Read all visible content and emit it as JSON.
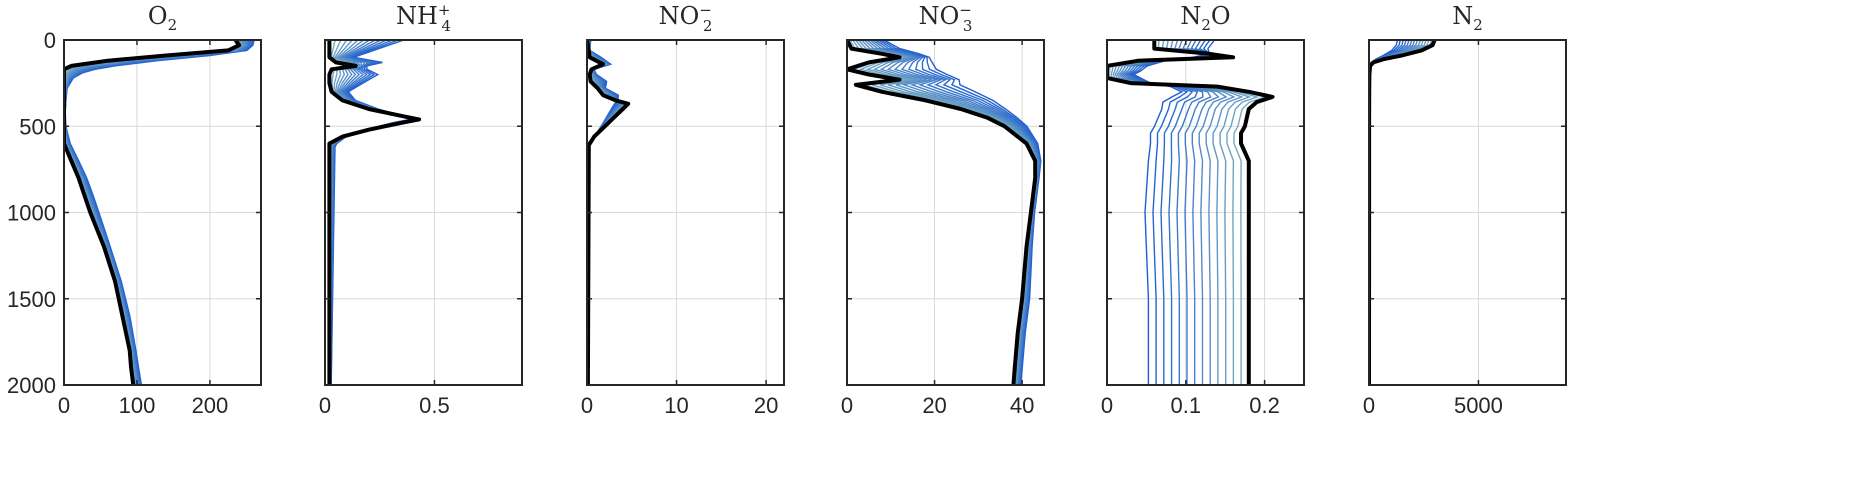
{
  "chart_data": {
    "type": "line",
    "y_axis": {
      "ylim": [
        0,
        2000
      ],
      "reversed": true,
      "ticks": [
        0,
        500,
        1000,
        1500,
        2000
      ],
      "tick_labels": [
        "0",
        "500",
        "1000",
        "1500",
        "2000"
      ]
    },
    "grid": true,
    "colors": {
      "ensemble_start": "#1f5fd1",
      "ensemble_end": "#7fb0c0",
      "final_profile": "#000000",
      "axes": "#262626",
      "grid": "#d9d9d9"
    },
    "panels": [
      {
        "title": {
          "base": "O",
          "sub": "2",
          "sup": ""
        },
        "xlim": [
          0,
          270
        ],
        "x_ticks": [
          0,
          100,
          200
        ],
        "x_tick_labels": [
          "0",
          "100",
          "200"
        ],
        "depth": [
          0,
          30,
          60,
          90,
          120,
          150,
          170,
          190,
          220,
          280,
          350,
          420,
          500,
          600,
          700,
          800,
          900,
          1000,
          1200,
          1400,
          1600,
          1800,
          1900,
          2000
        ],
        "final_profile": [
          235,
          240,
          225,
          140,
          60,
          10,
          0,
          0,
          0,
          0,
          0,
          0,
          0,
          0,
          10,
          20,
          28,
          36,
          55,
          70,
          80,
          90,
          92,
          95
        ],
        "ensemble_first": [
          265,
          262,
          255,
          210,
          140,
          80,
          50,
          30,
          15,
          5,
          3,
          2,
          3,
          10,
          22,
          33,
          42,
          50,
          65,
          80,
          92,
          100,
          104,
          108
        ],
        "ensemble_count": 14
      },
      {
        "title": {
          "base": "NH",
          "sub": "4",
          "sup": "+"
        },
        "xlim": [
          0,
          0.9
        ],
        "x_ticks": [
          0,
          0.5
        ],
        "x_tick_labels": [
          "0",
          "0.5"
        ],
        "depth": [
          0,
          100,
          130,
          150,
          170,
          200,
          250,
          300,
          350,
          400,
          440,
          460,
          480,
          520,
          560,
          600,
          620,
          2000
        ],
        "final_profile": [
          0.02,
          0.02,
          0.05,
          0.14,
          0.03,
          0.02,
          0.02,
          0.03,
          0.08,
          0.2,
          0.35,
          0.43,
          0.35,
          0.2,
          0.08,
          0.02,
          0.02,
          0.02
        ],
        "ensemble_first": [
          0.42,
          0.15,
          0.3,
          0.2,
          0.22,
          0.28,
          0.2,
          0.12,
          0.15,
          0.25,
          0.35,
          0.38,
          0.3,
          0.18,
          0.1,
          0.06,
          0.05,
          0.03
        ],
        "ensemble_count": 14
      },
      {
        "title": {
          "base": "NO",
          "sub": "2",
          "sup": "−"
        },
        "xlim": [
          0,
          22
        ],
        "x_ticks": [
          0,
          10,
          20
        ],
        "x_tick_labels": [
          "0",
          "10",
          "20"
        ],
        "depth": [
          0,
          60,
          100,
          140,
          170,
          200,
          240,
          280,
          320,
          350,
          370,
          400,
          450,
          500,
          560,
          610,
          2000
        ],
        "final_profile": [
          0,
          0.2,
          0.3,
          1.8,
          0.5,
          0.3,
          0.4,
          1.2,
          1.8,
          3.2,
          4.6,
          4.0,
          3.0,
          2.0,
          0.8,
          0.2,
          0.1
        ],
        "ensemble_first": [
          0.5,
          0.3,
          1.8,
          2.8,
          0.8,
          1.2,
          2.5,
          2.2,
          3.8,
          3.5,
          2.8,
          2.5,
          2.0,
          1.5,
          0.8,
          0.3,
          0.1
        ],
        "ensemble_count": 14
      },
      {
        "title": {
          "base": "NO",
          "sub": "3",
          "sup": "−"
        },
        "xlim": [
          0,
          45
        ],
        "x_ticks": [
          0,
          20,
          40
        ],
        "x_tick_labels": [
          "0",
          "20",
          "40"
        ],
        "depth": [
          0,
          50,
          80,
          100,
          130,
          170,
          200,
          230,
          260,
          300,
          350,
          400,
          450,
          500,
          600,
          700,
          800,
          1000,
          1200,
          1500,
          1700,
          1850,
          2000
        ],
        "final_profile": [
          0,
          1,
          8,
          12,
          5,
          0,
          5,
          12,
          2,
          8,
          18,
          26,
          32,
          36,
          41,
          43,
          43,
          42,
          41,
          40,
          39,
          38.5,
          38
        ],
        "ensemble_first": [
          10,
          14,
          18,
          20,
          22,
          24,
          26,
          28,
          30,
          33,
          36,
          38,
          40,
          42,
          44,
          44.5,
          44,
          43,
          42.5,
          42,
          41,
          40.5,
          40
        ],
        "ensemble_count": 14
      },
      {
        "title": {
          "base": "N",
          "sub": "2",
          "sup": ""
        },
        "title_suffix": "O",
        "xlim": [
          0,
          0.25
        ],
        "x_ticks": [
          0,
          0.1,
          0.2
        ],
        "x_tick_labels": [
          "0",
          "0.1",
          "0.2"
        ],
        "depth": [
          0,
          50,
          80,
          100,
          120,
          150,
          180,
          200,
          220,
          250,
          270,
          300,
          330,
          360,
          400,
          500,
          540,
          600,
          700,
          1000,
          1500,
          2000
        ],
        "final_profile": [
          0.06,
          0.06,
          0.13,
          0.16,
          0.04,
          0.0,
          0.0,
          0.0,
          0.0,
          0.03,
          0.14,
          0.18,
          0.21,
          0.19,
          0.18,
          0.175,
          0.17,
          0.17,
          0.18,
          0.18,
          0.18,
          0.18
        ],
        "ensemble_first": [
          0.15,
          0.14,
          0.13,
          0.1,
          0.08,
          0.06,
          0.05,
          0.04,
          0.05,
          0.06,
          0.07,
          0.08,
          0.06,
          0.05,
          0.05,
          0.04,
          0.035,
          0.035,
          0.03,
          0.025,
          0.03,
          0.03
        ],
        "ensemble_count": 14
      },
      {
        "title": {
          "base": "N",
          "sub": "2",
          "sup": ""
        },
        "xlim": [
          0,
          9000
        ],
        "x_ticks": [
          0,
          5000
        ],
        "x_tick_labels": [
          "0",
          "5000"
        ],
        "depth": [
          0,
          30,
          60,
          90,
          110,
          130,
          150,
          200,
          300,
          500,
          1000,
          2000
        ],
        "final_profile": [
          3000,
          2900,
          2400,
          1500,
          700,
          200,
          50,
          20,
          10,
          5,
          3,
          2
        ],
        "ensemble_first": [
          1000,
          950,
          800,
          500,
          250,
          80,
          20,
          8,
          5,
          3,
          2,
          2
        ],
        "ensemble_count": 14
      }
    ]
  }
}
